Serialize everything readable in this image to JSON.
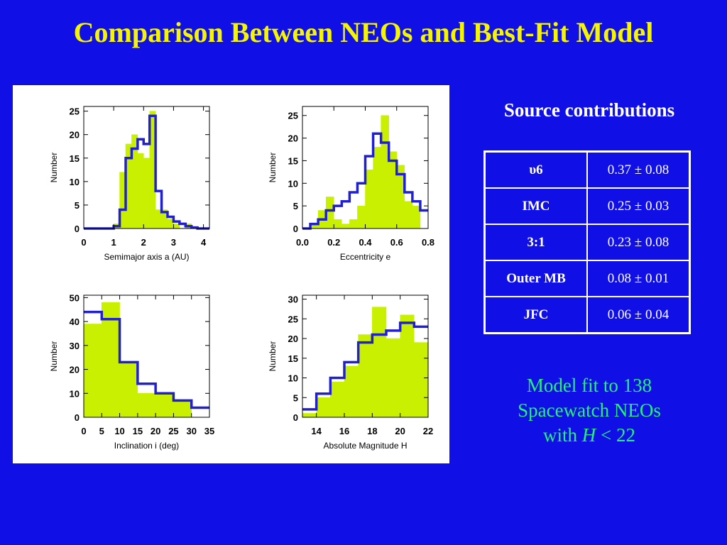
{
  "title": "Comparison Between NEOs and Best-Fit Model",
  "source_section": {
    "heading": "Source contributions",
    "rows": [
      {
        "name": "υ6",
        "value": "0.37 ± 0.08"
      },
      {
        "name": "IMC",
        "value": "0.25 ± 0.03"
      },
      {
        "name": "3:1",
        "value": "0.23 ± 0.08"
      },
      {
        "name": "Outer MB",
        "value": "0.08 ± 0.01"
      },
      {
        "name": "JFC",
        "value": "0.06 ± 0.04"
      }
    ]
  },
  "model_note": {
    "line1": "Model fit to 138",
    "line2": "Spacewatch NEOs",
    "line3_prefix": "with ",
    "line3_var": "H",
    "line3_suffix": " < 22"
  },
  "colors": {
    "background": "#1010e6",
    "title": "#f5f500",
    "observed_fill": "#c8f000",
    "model_line": "#2020d0",
    "note": "#25f07a"
  },
  "chart_data": [
    {
      "type": "histogram",
      "xlabel": "Semimajor axis a (AU)",
      "ylabel": "Number",
      "xlim": [
        0,
        4.2
      ],
      "ylim": [
        0,
        26
      ],
      "x_ticks": [
        0,
        1,
        2,
        3,
        4
      ],
      "y_ticks": [
        0,
        5,
        10,
        15,
        20,
        25
      ],
      "bin_edges": [
        0,
        0.2,
        0.4,
        0.6,
        0.8,
        1.0,
        1.2,
        1.4,
        1.6,
        1.8,
        2.0,
        2.2,
        2.4,
        2.6,
        2.8,
        3.0,
        3.2,
        3.4,
        3.6,
        3.8,
        4.0,
        4.2
      ],
      "observed": [
        0,
        0,
        0,
        0,
        0,
        1,
        12,
        18,
        20,
        16,
        15,
        25,
        4,
        4,
        2,
        1,
        0,
        1,
        0,
        0,
        0
      ],
      "model": [
        0,
        0,
        0,
        0,
        0,
        0.5,
        4,
        15,
        17,
        19,
        18,
        24,
        8,
        3.5,
        2.5,
        1.5,
        1,
        0.5,
        0.2,
        0,
        0
      ]
    },
    {
      "type": "histogram",
      "xlabel": "Eccentricity e",
      "ylabel": "Number",
      "xlim": [
        0,
        0.8
      ],
      "ylim": [
        0,
        27
      ],
      "x_ticks": [
        0.0,
        0.2,
        0.4,
        0.6,
        0.8
      ],
      "y_ticks": [
        0,
        5,
        10,
        15,
        20,
        25
      ],
      "bin_edges": [
        0,
        0.05,
        0.1,
        0.15,
        0.2,
        0.25,
        0.3,
        0.35,
        0.4,
        0.45,
        0.5,
        0.55,
        0.6,
        0.65,
        0.7,
        0.75,
        0.8
      ],
      "observed": [
        0,
        1,
        4,
        7,
        2,
        1,
        2,
        5,
        13,
        18,
        25,
        17,
        14,
        6,
        5,
        0
      ],
      "model": [
        0,
        1,
        2,
        4,
        5,
        6,
        8,
        10,
        16,
        21,
        19,
        15,
        12,
        8,
        6,
        4
      ]
    },
    {
      "type": "histogram",
      "xlabel": "Inclination i (deg)",
      "ylabel": "Number",
      "xlim": [
        0,
        35
      ],
      "ylim": [
        0,
        51
      ],
      "x_ticks": [
        0,
        5,
        10,
        15,
        20,
        25,
        30,
        35
      ],
      "y_ticks": [
        0,
        10,
        20,
        30,
        40,
        50
      ],
      "bin_edges": [
        0,
        5,
        10,
        15,
        20,
        25,
        30,
        35
      ],
      "observed": [
        39,
        48,
        23,
        10,
        10,
        7,
        0
      ],
      "model": [
        44,
        41,
        23,
        14,
        10,
        7,
        4
      ]
    },
    {
      "type": "histogram",
      "xlabel": "Absolute Magnitude H",
      "ylabel": "Number",
      "xlim": [
        13,
        22
      ],
      "ylim": [
        0,
        31
      ],
      "x_ticks": [
        14,
        16,
        18,
        20,
        22
      ],
      "y_ticks": [
        0,
        5,
        10,
        15,
        20,
        25,
        30
      ],
      "bin_edges": [
        13,
        14,
        15,
        16,
        17,
        18,
        19,
        20,
        21,
        22
      ],
      "observed": [
        1,
        5,
        9,
        13,
        21,
        28,
        20,
        26,
        19
      ],
      "model": [
        2,
        6,
        10,
        14,
        19,
        21,
        22,
        24,
        23
      ]
    }
  ]
}
